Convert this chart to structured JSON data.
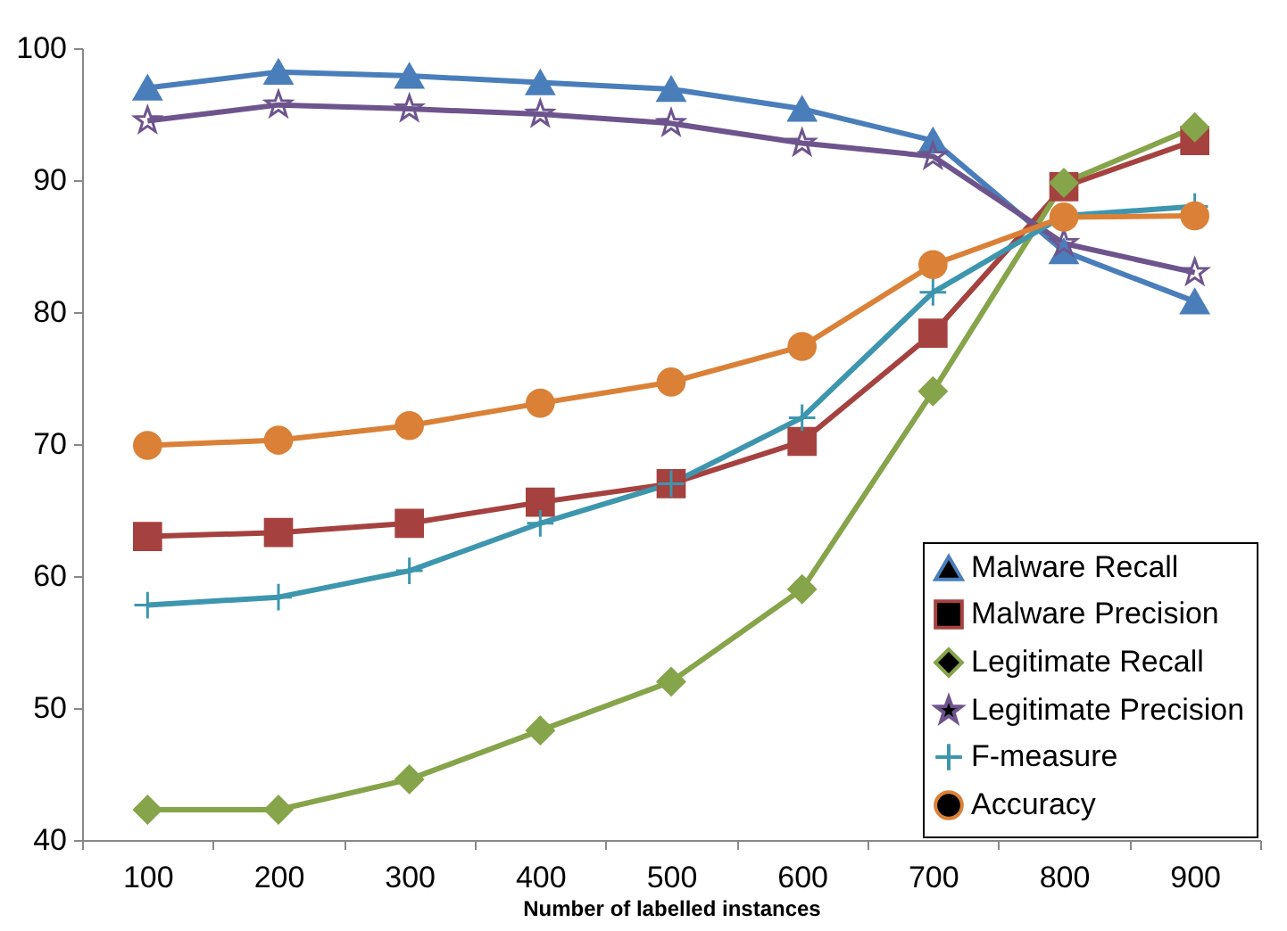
{
  "chart_data": {
    "type": "line",
    "xlabel": "Number of labelled instances",
    "categories": [
      "100",
      "200",
      "300",
      "400",
      "500",
      "600",
      "700",
      "800",
      "900"
    ],
    "ylim": [
      40,
      100
    ],
    "yticks": [
      40,
      50,
      60,
      70,
      80,
      90,
      100
    ],
    "grid": false,
    "legend": "bottom right",
    "series": [
      {
        "name": "Malware Recall",
        "color": "#4a7ebb",
        "marker": "triangle",
        "values": [
          97,
          98.2,
          97.9,
          97.4,
          96.9,
          95.4,
          93,
          84.6,
          80.8
        ]
      },
      {
        "name": "Malware Precision",
        "color": "#a5423f",
        "marker": "square",
        "values": [
          63,
          63.3,
          64,
          65.6,
          67,
          70.2,
          78.4,
          89.5,
          93
        ]
      },
      {
        "name": "Legitimate Recall",
        "color": "#86a44a",
        "marker": "diamond",
        "values": [
          42.3,
          42.3,
          44.6,
          48.3,
          52,
          59,
          74,
          89.8,
          94
        ]
      },
      {
        "name": "Legitimate Precision",
        "color": "#6e548d",
        "marker": "star",
        "values": [
          94.5,
          95.7,
          95.4,
          95,
          94.3,
          92.8,
          91.8,
          85.2,
          83
        ]
      },
      {
        "name": "F-measure",
        "color": "#3d96ae",
        "marker": "cross",
        "values": [
          57.8,
          58.4,
          60.4,
          64,
          67,
          72,
          81.5,
          87.3,
          88
        ]
      },
      {
        "name": "Accuracy",
        "color": "#da8137",
        "marker": "circle",
        "values": [
          69.9,
          70.3,
          71.4,
          73.1,
          74.7,
          77.4,
          83.6,
          87.2,
          87.3
        ]
      }
    ]
  }
}
